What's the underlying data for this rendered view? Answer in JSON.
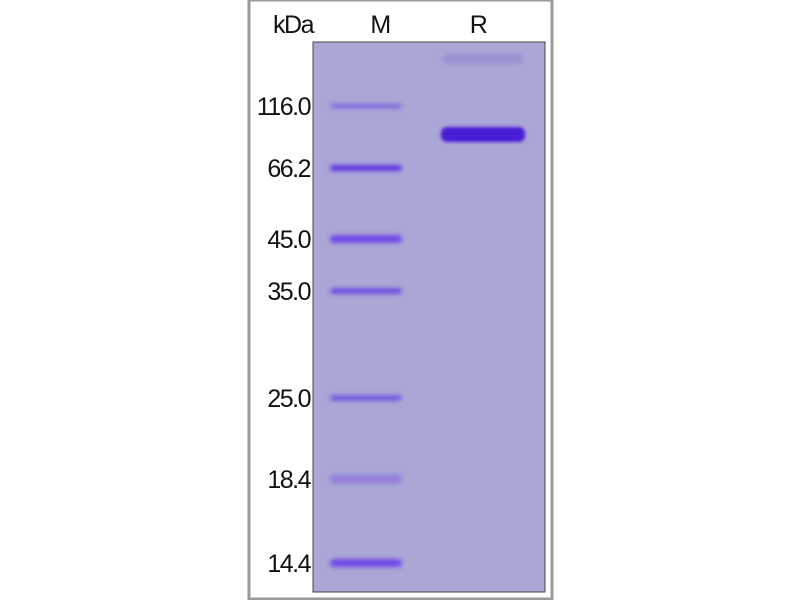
{
  "header": {
    "unit": "kDa",
    "lanes": [
      "M",
      "R"
    ]
  },
  "markers": [
    "116.0",
    "66.2",
    "45.0",
    "35.0",
    "25.0",
    "18.4",
    "14.4"
  ]
}
